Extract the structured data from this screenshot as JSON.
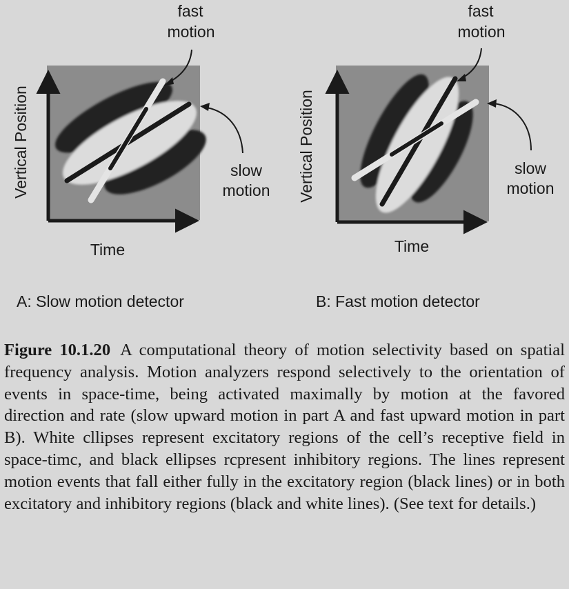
{
  "panels": [
    {
      "id": "A",
      "x_label": "Time",
      "y_label": "Vertical Position",
      "annotation_top": [
        "fast",
        "motion"
      ],
      "annotation_side": [
        "slow",
        "motion"
      ],
      "caption": "A:  Slow motion detector"
    },
    {
      "id": "B",
      "x_label": "Time",
      "y_label": "Vertical Position",
      "annotation_top": [
        "fast",
        "motion"
      ],
      "annotation_side": [
        "slow",
        "motion"
      ],
      "caption": "B:  Fast motion detector"
    }
  ],
  "figure_caption": {
    "label": "Figure 10.1.20",
    "text": "A computational theory of motion selectivity based on spatial frequency analysis. Motion analyzers respond selectively to the orientation of events in space-time, being activated maximally by motion at the favored direction and rate (slow upward motion in part A and fast upward motion in part B). White cllipses represent excitatory regions of the cell’s receptive field in space-timc, and black ellipses rcpresent inhibitory regions. The lines represent motion events that fall either fully in the excitatory region (black lines) or in both excitatory and inhibitory regions (black and white lines). (See text for details.)"
  },
  "colors": {
    "background": "#d8d8d8",
    "field": "#8c8c8c",
    "excitatory": "#dcdcdc",
    "inhibitory": "#222222",
    "axis": "#1a1a1a"
  }
}
